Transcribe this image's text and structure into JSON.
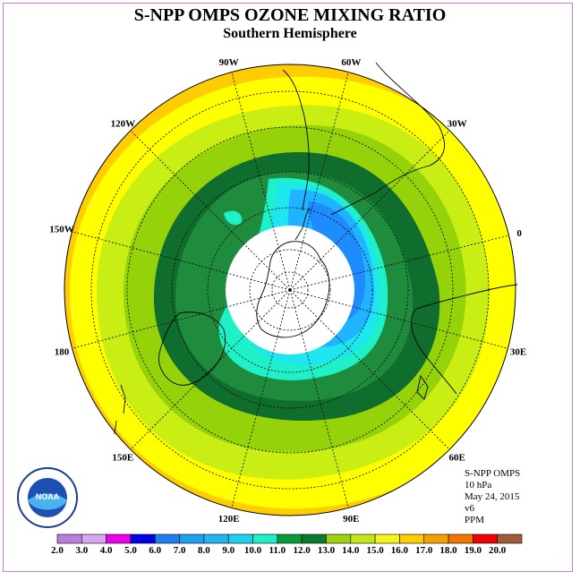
{
  "title": "S-NPP OMPS OZONE MIXING RATIO",
  "subtitle": "Southern Hemisphere",
  "longitude_labels": [
    "90W",
    "60W",
    "30W",
    "0",
    "30E",
    "60E",
    "90E",
    "120E",
    "150E",
    "180",
    "150W",
    "120W"
  ],
  "info": {
    "instrument": "S-NPP OMPS",
    "level": "10 hPa",
    "date": "May 24, 2015",
    "version": "v6",
    "units": "PPM"
  },
  "logo": {
    "text": "NOAA",
    "ring_text": "NATIONAL OCEANIC AND ATMOSPHERIC ADMINISTRATION · U.S. DEPARTMENT OF COMMERCE"
  },
  "colorbar": {
    "ticks": [
      "2.0",
      "3.0",
      "4.0",
      "5.0",
      "6.0",
      "7.0",
      "8.0",
      "9.0",
      "10.0",
      "11.0",
      "12.0",
      "13.0",
      "14.0",
      "15.0",
      "16.0",
      "17.0",
      "18.0",
      "19.0",
      "20.0"
    ],
    "colors": [
      "#b87fe0",
      "#d8a8ee",
      "#ee00ee",
      "#0000e6",
      "#1f7ff0",
      "#1da0f0",
      "#20b4f0",
      "#1fd0f0",
      "#1ef0c8",
      "#0a9a3c",
      "#0a7a2c",
      "#9ed20a",
      "#c4e614",
      "#f5f51e",
      "#ffcc00",
      "#f5a000",
      "#f07800",
      "#f00000",
      "#a05a3c"
    ]
  },
  "colors": {
    "c11": "#1e8c3c",
    "c12": "#0f6e2d",
    "c13": "#96d20a",
    "c14": "#c8ee14",
    "c15": "#ffff00",
    "c16": "#ffcc00",
    "c10": "#1ef0c8",
    "c9": "#1ee6f0",
    "c8": "#1eb4ff",
    "c7": "#1e8cff",
    "pole": "#ffffff"
  }
}
